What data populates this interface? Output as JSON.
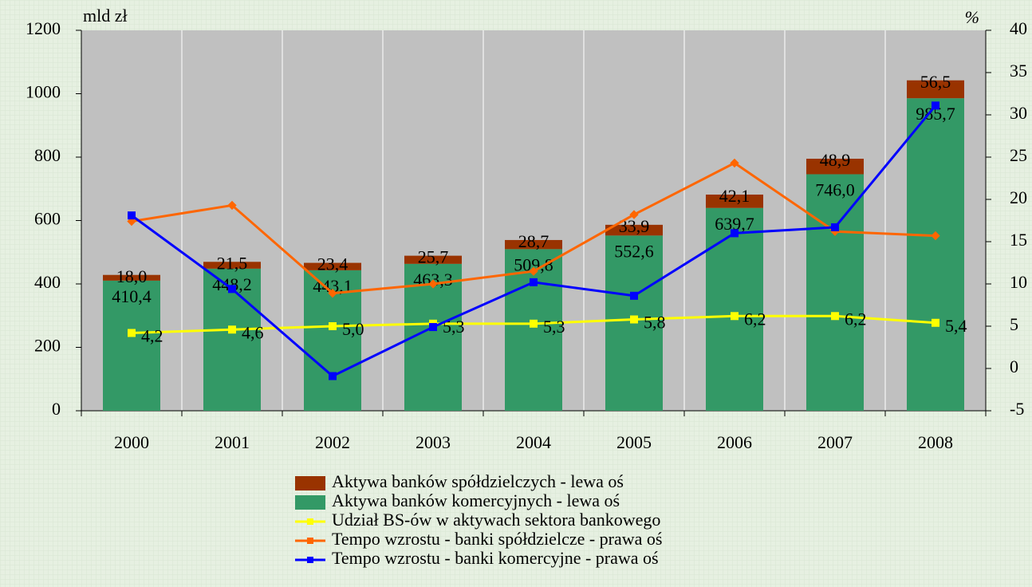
{
  "chart_data": {
    "type": "bar",
    "y_label": "mld zł",
    "y2_label": "%",
    "categories": [
      "2000",
      "2001",
      "2002",
      "2003",
      "2004",
      "2005",
      "2006",
      "2007",
      "2008"
    ],
    "ylim": [
      0,
      1200
    ],
    "yticks": [
      0,
      200,
      400,
      600,
      800,
      1000,
      1200
    ],
    "y2lim": [
      -5,
      40
    ],
    "y2ticks": [
      -5,
      0,
      5,
      10,
      15,
      20,
      25,
      30,
      35,
      40
    ],
    "grid": true,
    "series": [
      {
        "name": "Aktywa banków spółdzielczych - lewa oś",
        "type": "bar",
        "color": "#993300",
        "values": [
          18.0,
          21.5,
          23.4,
          25.7,
          28.7,
          33.9,
          42.1,
          48.9,
          56.5
        ],
        "value_labels": [
          "18,0",
          "21,5",
          "23,4",
          "25,7",
          "28,7",
          "33,9",
          "42,1",
          "48,9",
          "56,5"
        ]
      },
      {
        "name": "Aktywa banków komercyjnych - lewa oś",
        "type": "bar",
        "color": "#339966",
        "values": [
          410.4,
          448.2,
          443.1,
          463.3,
          509.8,
          552.6,
          639.7,
          746.0,
          985.7
        ],
        "value_labels": [
          "410,4",
          "448,2",
          "443,1",
          "463,3",
          "509,8",
          "552,6",
          "639,7",
          "746,0",
          "985,7"
        ]
      },
      {
        "name": "Udział BS-ów w aktywach sektora bankowego",
        "type": "line",
        "axis": "y2",
        "color": "#ffff00",
        "values": [
          4.2,
          4.6,
          5.0,
          5.3,
          5.3,
          5.8,
          6.2,
          6.2,
          5.4
        ],
        "value_labels": [
          "4,2",
          "4,6",
          "5,0",
          "5,3",
          "5,3",
          "5,8",
          "6,2",
          "6,2",
          "5,4"
        ]
      },
      {
        "name": "Tempo wzrostu - banki spółdzielcze - prawa oś",
        "type": "line",
        "axis": "y2",
        "color": "#ff6600",
        "values": [
          17.4,
          19.3,
          8.9,
          10.0,
          11.5,
          18.2,
          24.3,
          16.2,
          15.7
        ]
      },
      {
        "name": "Tempo wzrostu - banki komercyjne - prawa oś",
        "type": "line",
        "axis": "y2",
        "color": "#0000ff",
        "values": [
          18.1,
          9.4,
          -0.9,
          4.9,
          10.2,
          8.6,
          16.0,
          16.7,
          31.1
        ]
      }
    ]
  }
}
